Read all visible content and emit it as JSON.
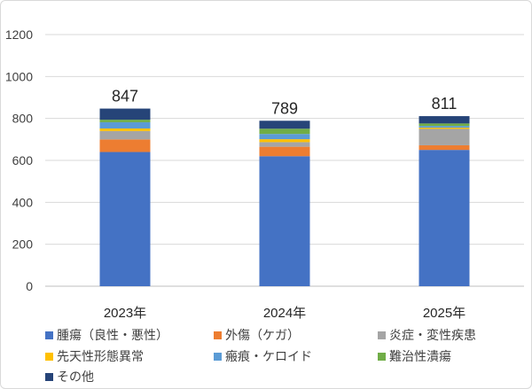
{
  "chart_data": {
    "type": "bar",
    "stacked": true,
    "title": "",
    "xlabel": "",
    "ylabel": "",
    "ylim": [
      0,
      1200
    ],
    "yticks": [
      0,
      200,
      400,
      600,
      800,
      1000,
      1200
    ],
    "grid": "horizontal",
    "legend_position": "bottom",
    "categories": [
      "2023年",
      "2024年",
      "2025年"
    ],
    "totals": [
      847,
      789,
      811
    ],
    "series": [
      {
        "name": "腫瘍（良性・悪性）",
        "color": "#4472C4",
        "values": [
          640,
          620,
          650
        ]
      },
      {
        "name": "外傷（ケガ）",
        "color": "#ED7D31",
        "values": [
          60,
          45,
          22
        ]
      },
      {
        "name": "炎症・変性疾患",
        "color": "#A5A5A5",
        "values": [
          40,
          22,
          78
        ]
      },
      {
        "name": "先天性形態異常",
        "color": "#FFC000",
        "values": [
          12,
          14,
          6
        ]
      },
      {
        "name": "瘢痕・ケロイド",
        "color": "#5B9BD5",
        "values": [
          30,
          25,
          8
        ]
      },
      {
        "name": "難治性潰瘍",
        "color": "#70AD47",
        "values": [
          12,
          25,
          12
        ]
      },
      {
        "name": "その他",
        "color": "#264478",
        "values": [
          53,
          38,
          35
        ]
      }
    ]
  }
}
